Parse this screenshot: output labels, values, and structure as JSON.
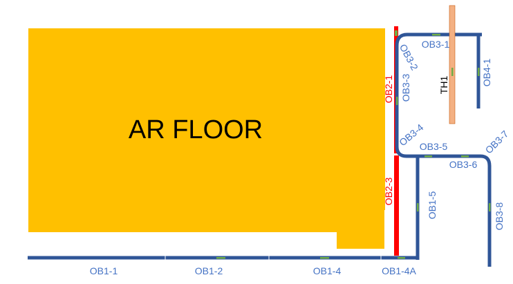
{
  "floor": {
    "label": "AR FLOOR"
  },
  "colors": {
    "floor": "#ffc000",
    "conveyor_blue": "#2f5597",
    "conveyor_red": "#ff0000",
    "label_blue": "#4472c4",
    "direction_arrow": "#70ad47",
    "th1_fill": "#f4b183"
  },
  "labels": {
    "ob1_1": "OB1-1",
    "ob1_2": "OB1-2",
    "ob1_4": "OB1-4",
    "ob1_4a": "OB1-4A",
    "ob1_5": "OB1-5",
    "ob2_1": "OB2-1",
    "ob2_3": "OB2-3",
    "ob3_1": "OB3-1",
    "ob3_2": "OB3-2",
    "ob3_3": "OB3-3",
    "ob3_4": "OB3-4",
    "ob3_5": "OB3-5",
    "ob3_6": "OB3-6",
    "ob3_7": "OB3-7",
    "ob3_8": "OB3-8",
    "ob4_1": "OB4-1",
    "th1": "TH1"
  }
}
